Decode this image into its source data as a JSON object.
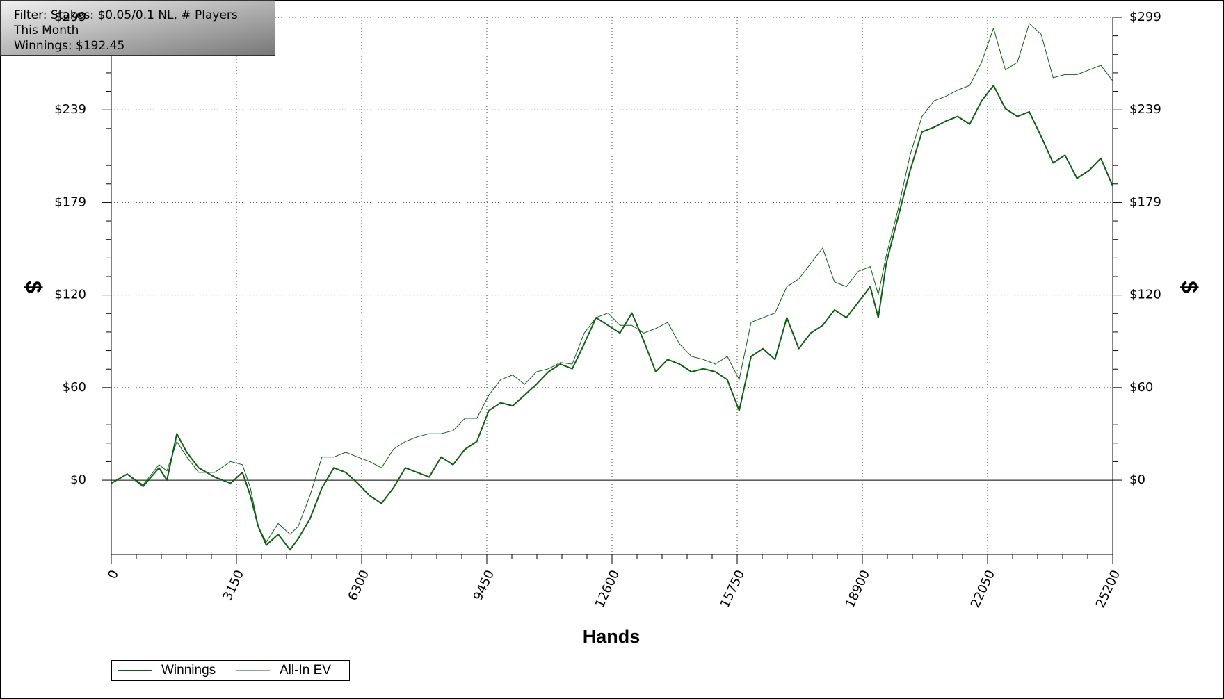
{
  "chart_data": {
    "type": "line",
    "info": [
      "Filter: Stakes: $0.05/0.1 NL, # Players",
      "This Month",
      "Winnings: $192.45"
    ],
    "xlabel": "Hands",
    "ylabel": "$",
    "x": [
      0,
      400,
      800,
      1200,
      1400,
      1650,
      1900,
      2200,
      2600,
      3000,
      3300,
      3500,
      3700,
      3900,
      4200,
      4500,
      4700,
      5000,
      5300,
      5600,
      5900,
      6200,
      6500,
      6800,
      7100,
      7400,
      7700,
      8000,
      8300,
      8600,
      8900,
      9200,
      9500,
      9800,
      10100,
      10400,
      10700,
      11000,
      11300,
      11600,
      11900,
      12200,
      12500,
      12800,
      13100,
      13400,
      13700,
      14000,
      14300,
      14600,
      14900,
      15200,
      15500,
      15800,
      16100,
      16400,
      16700,
      17000,
      17300,
      17600,
      17900,
      18200,
      18500,
      18800,
      19100,
      19300,
      19500,
      19800,
      20100,
      20400,
      20700,
      21000,
      21300,
      21600,
      21900,
      22200,
      22500,
      22800,
      23100,
      23400,
      23700,
      24000,
      24300,
      24600,
      24900,
      25200
    ],
    "series": [
      {
        "name": "Winnings",
        "color": "#0d5f12",
        "width": 2,
        "values": [
          -2,
          4,
          -4,
          8,
          0,
          30,
          18,
          8,
          2,
          -2,
          5,
          -10,
          -30,
          -42,
          -35,
          -45,
          -38,
          -25,
          -5,
          8,
          5,
          -2,
          -10,
          -15,
          -5,
          8,
          5,
          2,
          15,
          10,
          20,
          25,
          45,
          50,
          48,
          55,
          62,
          70,
          75,
          72,
          88,
          105,
          100,
          95,
          108,
          90,
          70,
          78,
          75,
          70,
          72,
          70,
          65,
          45,
          80,
          85,
          78,
          105,
          85,
          95,
          100,
          110,
          105,
          115,
          125,
          105,
          140,
          170,
          200,
          225,
          228,
          232,
          235,
          230,
          245,
          255,
          240,
          235,
          238,
          222,
          205,
          210,
          195,
          200,
          208,
          190
        ]
      },
      {
        "name": "All-In EV",
        "color": "#0d5f12",
        "width": 1,
        "values": [
          -2,
          4,
          -3,
          10,
          6,
          25,
          15,
          5,
          5,
          12,
          10,
          -5,
          -30,
          -40,
          -28,
          -35,
          -30,
          -10,
          15,
          15,
          18,
          15,
          12,
          8,
          20,
          25,
          28,
          30,
          30,
          32,
          40,
          40,
          55,
          65,
          68,
          62,
          70,
          72,
          76,
          75,
          95,
          105,
          108,
          100,
          100,
          95,
          98,
          102,
          88,
          80,
          78,
          75,
          80,
          65,
          102,
          105,
          108,
          125,
          130,
          140,
          150,
          128,
          125,
          135,
          138,
          120,
          145,
          175,
          210,
          235,
          245,
          248,
          252,
          255,
          270,
          292,
          265,
          270,
          295,
          288,
          260,
          262,
          262,
          265,
          268,
          258
        ]
      }
    ],
    "xlim": [
      0,
      25200
    ],
    "xticks": [
      0,
      3150,
      6300,
      9450,
      12600,
      15750,
      18900,
      22050,
      25200
    ],
    "ylim": [
      -48,
      299
    ],
    "yticks": [
      {
        "value": 0,
        "label": "$0"
      },
      {
        "value": 59.8,
        "label": "$60"
      },
      {
        "value": 119.6,
        "label": "$120"
      },
      {
        "value": 179.4,
        "label": "$179"
      },
      {
        "value": 239.2,
        "label": "$239"
      },
      {
        "value": 299,
        "label": "$299"
      }
    ],
    "grid": true
  }
}
